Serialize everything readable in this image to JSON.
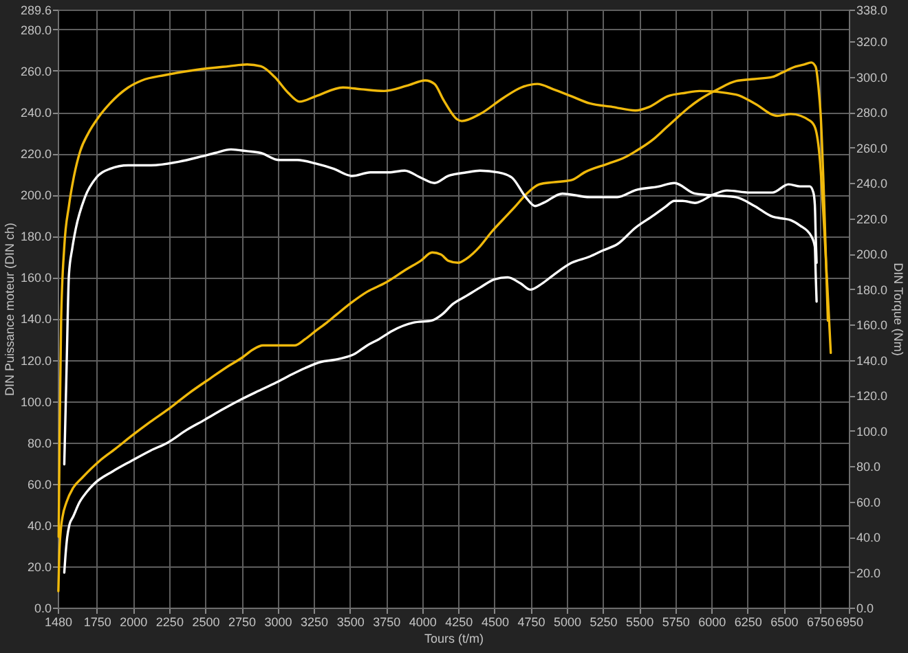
{
  "chart_data": {
    "type": "line",
    "xlabel": "Tours (t/m)",
    "ylabel": "DIN Puissance moteur (DIN ch)",
    "y2label": "DIN Torque (Nm)",
    "xlim": [
      1480,
      6950
    ],
    "xticks": [
      1480,
      1750,
      2000,
      2250,
      2500,
      2750,
      3000,
      3250,
      3500,
      3750,
      4000,
      4250,
      4500,
      4750,
      5000,
      5250,
      5500,
      5750,
      6000,
      6250,
      6500,
      6750,
      6950
    ],
    "ylim": [
      0,
      289.6
    ],
    "yticks": [
      {
        "value": 0,
        "label": "0.0"
      },
      {
        "value": 20,
        "label": "20.0"
      },
      {
        "value": 40,
        "label": "40.0"
      },
      {
        "value": 60,
        "label": "60.0"
      },
      {
        "value": 80,
        "label": "80.0"
      },
      {
        "value": 100,
        "label": "100.0"
      },
      {
        "value": 120,
        "label": "120.0"
      },
      {
        "value": 140,
        "label": "140.0"
      },
      {
        "value": 160,
        "label": "160.0"
      },
      {
        "value": 180,
        "label": "180.0"
      },
      {
        "value": 200,
        "label": "200.0"
      },
      {
        "value": 220,
        "label": "220.0"
      },
      {
        "value": 240,
        "label": "240.0"
      },
      {
        "value": 260,
        "label": "260.0"
      },
      {
        "value": 280,
        "label": "280.0"
      },
      289.6
    ],
    "y2lim": [
      0,
      338
    ],
    "y2ticks": [
      {
        "value": 0,
        "label": "0.0"
      },
      {
        "value": 20,
        "label": "20.0"
      },
      {
        "value": 40,
        "label": "40.0"
      },
      {
        "value": 60,
        "label": "60.0"
      },
      {
        "value": 80,
        "label": "80.0"
      },
      {
        "value": 100,
        "label": "100.0"
      },
      {
        "value": 120,
        "label": "120.0"
      },
      {
        "value": 140,
        "label": "140.0"
      },
      {
        "value": 160,
        "label": "160.0"
      },
      {
        "value": 180,
        "label": "180.0"
      },
      {
        "value": 200,
        "label": "200.0"
      },
      {
        "value": 220,
        "label": "220.0"
      },
      {
        "value": 240,
        "label": "240.0"
      },
      {
        "value": 260,
        "label": "260.0"
      },
      {
        "value": 280,
        "label": "280.0"
      },
      {
        "value": 300,
        "label": "300.0"
      },
      {
        "value": 320,
        "label": "320.0"
      },
      {
        "value": 338,
        "label": "338.0"
      }
    ],
    "grid": true,
    "series": [
      {
        "color": "#ffffff",
        "x": [
          1525,
          1533,
          1545,
          1560,
          1586,
          1630,
          1680,
          1732,
          1860,
          1987,
          2120,
          2242,
          2370,
          2497,
          2620,
          2753,
          2870,
          2990,
          3100,
          3190,
          3300,
          3391,
          3536,
          3620,
          3701,
          3792,
          3938,
          4065,
          4138,
          4211,
          4306,
          4400,
          4500,
          4590,
          4680,
          4748,
          4830,
          4906,
          5033,
          5159,
          5250,
          5349,
          5475,
          5601,
          5680,
          5744,
          5800,
          5886,
          6012,
          6107,
          6265,
          6422,
          6533,
          6612,
          6680,
          6705,
          6715,
          6721,
          6727
        ],
        "values": [
          17,
          25,
          34,
          40,
          44,
          51,
          56,
          60,
          66,
          71,
          76,
          80,
          86,
          91,
          96,
          101,
          105,
          109,
          113,
          116,
          119,
          120,
          123,
          127,
          130,
          134,
          138,
          139,
          142,
          147,
          151,
          155,
          159,
          160,
          157,
          154,
          157,
          161,
          167,
          170,
          173,
          176,
          184,
          190,
          194,
          197,
          197,
          196,
          200,
          202,
          201,
          201,
          205,
          204,
          204,
          201,
          195,
          180,
          167
        ]
      },
      {
        "color": "#ffffff",
        "axis": "y2",
        "x": [
          1525,
          1541,
          1557,
          1580,
          1604,
          1668,
          1746,
          1841,
          1967,
          2125,
          2315,
          2473,
          2568,
          2678,
          2789,
          2884,
          3010,
          3137,
          3263,
          3389,
          3516,
          3642,
          3768,
          3879,
          3990,
          4085,
          4180,
          4306,
          4400,
          4527,
          4621,
          4716,
          4780,
          4843,
          4969,
          5159,
          5349,
          5475,
          5633,
          5744,
          5886,
          6012,
          6170,
          6298,
          6422,
          6486,
          6549,
          6612,
          6690,
          6715,
          6721,
          6727
        ],
        "values": [
          81,
          136,
          188,
          203,
          214,
          232,
          243,
          248,
          250,
          250,
          252,
          255,
          257,
          259,
          258,
          257,
          253,
          253,
          251,
          248,
          244,
          246,
          246,
          247,
          243,
          240,
          244,
          246,
          247,
          246,
          243,
          232,
          227,
          229,
          234,
          232,
          232,
          236,
          238,
          240,
          234,
          233,
          232,
          227,
          221,
          220,
          219,
          216,
          210,
          204,
          188,
          173
        ]
      },
      {
        "color": "#f0b90b",
        "x": [
          1484,
          1490,
          1500,
          1513,
          1540,
          1586,
          1650,
          1768,
          1880,
          1987,
          2120,
          2242,
          2390,
          2534,
          2660,
          2753,
          2830,
          2898,
          3000,
          3117,
          3190,
          3263,
          3340,
          3409,
          3516,
          3620,
          3737,
          3895,
          3990,
          4069,
          4130,
          4180,
          4250,
          4306,
          4400,
          4480,
          4559,
          4640,
          4716,
          4810,
          4906,
          5030,
          5128,
          5285,
          5400,
          5475,
          5601,
          5680,
          5759,
          5840,
          5917,
          6043,
          6170,
          6296,
          6422,
          6486,
          6581,
          6640,
          6690,
          6720,
          6740,
          6755,
          6780,
          6805
        ],
        "values": [
          8,
          25,
          37,
          44,
          51,
          58,
          63,
          71,
          77,
          83,
          90,
          96,
          104,
          111,
          117,
          121,
          125,
          127,
          127,
          127,
          130,
          134,
          138,
          142,
          148,
          153,
          157,
          164,
          168,
          172,
          171,
          168,
          167,
          169,
          175,
          182,
          188,
          194,
          200,
          205,
          206,
          207,
          211,
          215,
          218,
          221,
          227,
          232,
          237,
          242,
          246,
          251,
          255,
          256,
          257,
          259,
          262,
          263,
          264,
          262,
          252,
          239,
          195,
          139
        ]
      },
      {
        "color": "#f0b90b",
        "axis": "y2",
        "x": [
          1486,
          1493,
          1503,
          1525,
          1557,
          1590,
          1635,
          1690,
          1760,
          1841,
          1967,
          2062,
          2221,
          2441,
          2663,
          2789,
          2884,
          2979,
          3073,
          3152,
          3263,
          3452,
          3579,
          3737,
          3895,
          4021,
          4085,
          4147,
          4242,
          4274,
          4400,
          4559,
          4685,
          4796,
          4906,
          5033,
          5159,
          5317,
          5474,
          5569,
          5696,
          5822,
          5917,
          6170,
          6298,
          6455,
          6549,
          6685,
          6718,
          6750,
          6780,
          6812,
          6825
        ],
        "values": [
          40,
          100,
          162,
          204,
          227,
          243,
          258,
          268,
          277,
          285,
          294,
          298,
          301,
          304,
          306,
          307,
          306,
          300,
          291,
          286,
          289,
          294,
          293,
          292,
          295,
          298,
          296,
          287,
          276,
          275,
          279,
          288,
          294,
          296,
          293,
          289,
          285,
          283,
          281,
          283,
          289,
          291,
          292,
          290,
          285,
          278,
          279,
          275,
          271,
          253,
          214,
          165,
          144
        ]
      }
    ]
  }
}
